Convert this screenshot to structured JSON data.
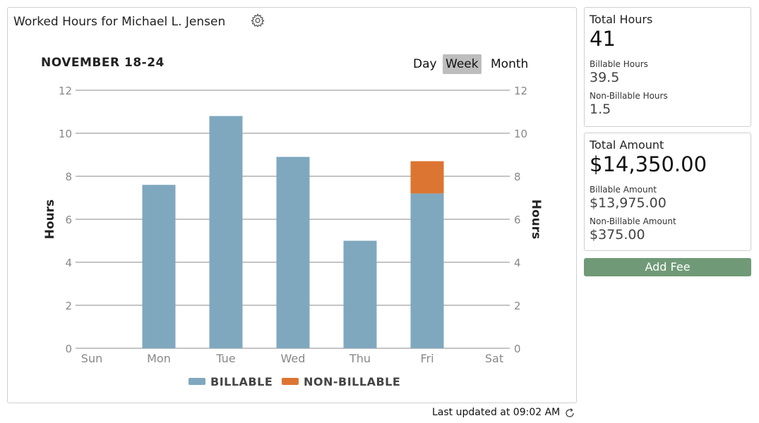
{
  "header": {
    "title": "Worked Hours for Michael L. Jensen",
    "settings_icon": "gear-icon"
  },
  "period": {
    "label": "NOVEMBER 18-24",
    "views": [
      "Day",
      "Week",
      "Month"
    ],
    "active_view": "Week"
  },
  "chart_data": {
    "type": "bar",
    "stacked": true,
    "categories": [
      "Sun",
      "Mon",
      "Tue",
      "Wed",
      "Thu",
      "Fri",
      "Sat"
    ],
    "series": [
      {
        "name": "BILLABLE",
        "color": "#7fa8bf",
        "values": [
          0,
          7.6,
          10.8,
          8.9,
          5.0,
          7.2,
          0
        ]
      },
      {
        "name": "NON-BILLABLE",
        "color": "#dd7532",
        "values": [
          0,
          0,
          0,
          0,
          0,
          1.5,
          0
        ]
      }
    ],
    "ylabel": "Hours",
    "ylabel_right": "Hours",
    "ylim": [
      0,
      12
    ],
    "yticks": [
      0,
      2,
      4,
      6,
      8,
      10,
      12
    ],
    "grid": true,
    "legend": "bottom"
  },
  "summary": {
    "hours": {
      "title": "Total Hours",
      "total": "41",
      "billable_label": "Billable Hours",
      "billable": "39.5",
      "nonbillable_label": "Non-Billable Hours",
      "nonbillable": "1.5"
    },
    "amount": {
      "title": "Total Amount",
      "total": "$14,350.00",
      "billable_label": "Billable Amount",
      "billable": "$13,975.00",
      "nonbillable_label": "Non-Billable Amount",
      "nonbillable": "$375.00"
    }
  },
  "actions": {
    "add_fee_label": "Add Fee"
  },
  "footer": {
    "last_updated": "Last updated at 09:02 AM",
    "refresh_icon": "refresh-icon"
  }
}
